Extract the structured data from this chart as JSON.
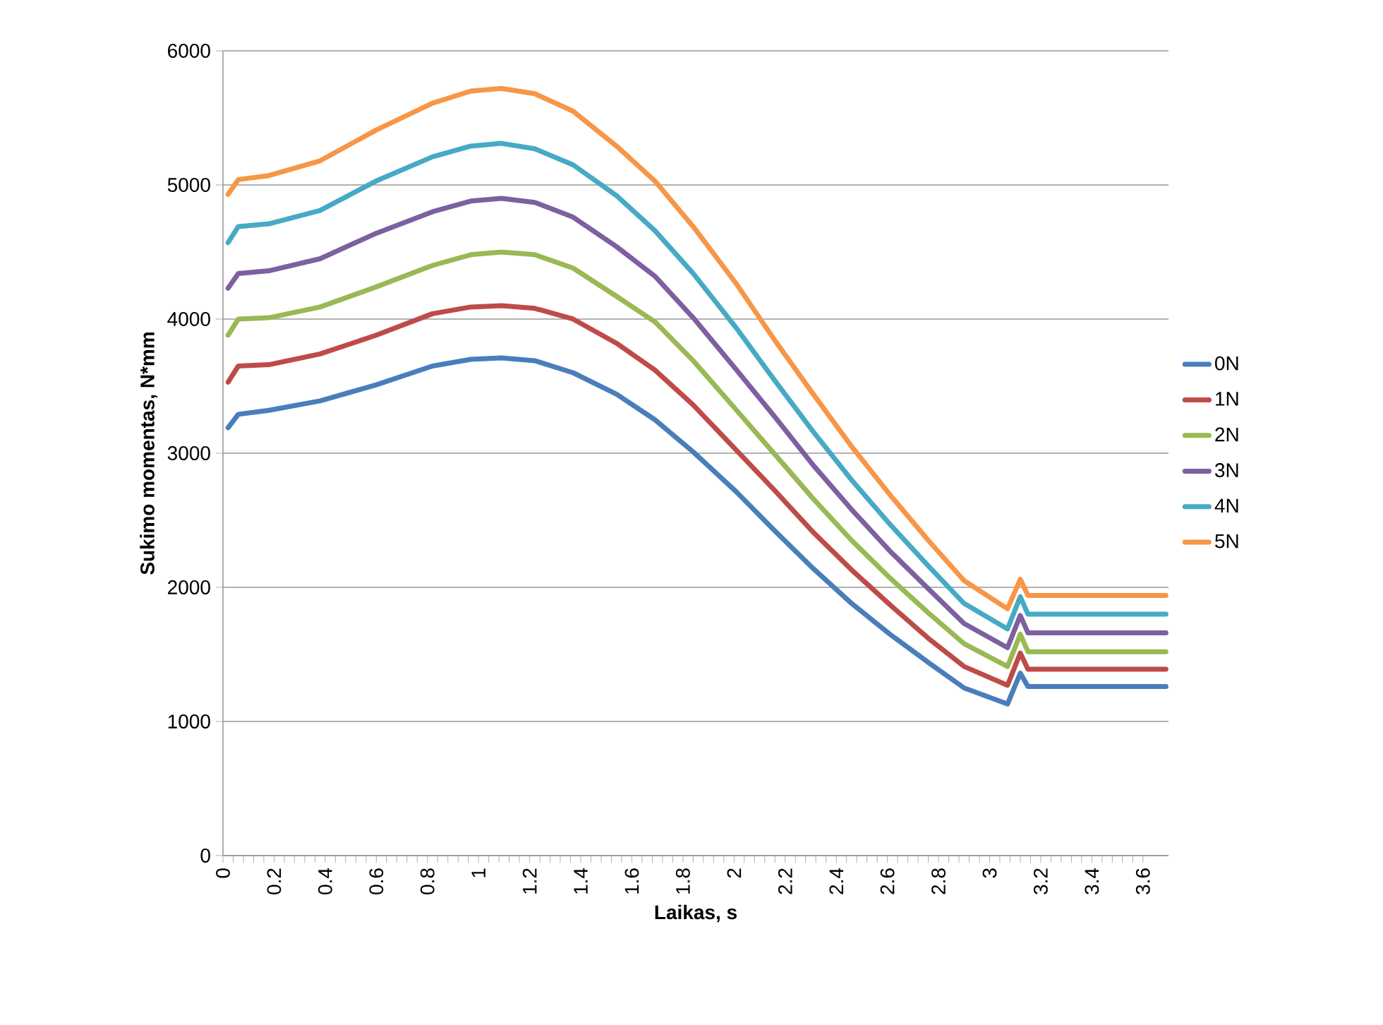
{
  "chart_data": {
    "type": "line",
    "xlabel": "Laikas, s",
    "ylabel": "Sukimo momentas, N*mm",
    "x": [
      0.02,
      0.06,
      0.18,
      0.38,
      0.6,
      0.82,
      0.97,
      1.09,
      1.22,
      1.37,
      1.54,
      1.69,
      1.84,
      2.01,
      2.16,
      2.31,
      2.46,
      2.61,
      2.76,
      2.9,
      3.07,
      3.12,
      3.15,
      3.4,
      3.69
    ],
    "series": [
      {
        "name": "0N",
        "color": "#4a7ebb",
        "values": [
          3190,
          3290,
          3320,
          3390,
          3510,
          3650,
          3700,
          3710,
          3690,
          3600,
          3440,
          3250,
          3010,
          2710,
          2420,
          2140,
          1880,
          1650,
          1440,
          1250,
          1130,
          1360,
          1260,
          1260,
          1260
        ]
      },
      {
        "name": "1N",
        "color": "#be4b48",
        "values": [
          3530,
          3650,
          3660,
          3740,
          3880,
          4040,
          4090,
          4100,
          4080,
          4000,
          3820,
          3620,
          3360,
          3020,
          2720,
          2410,
          2130,
          1870,
          1620,
          1410,
          1270,
          1510,
          1390,
          1390,
          1390
        ]
      },
      {
        "name": "2N",
        "color": "#98b954",
        "values": [
          3880,
          4000,
          4010,
          4090,
          4240,
          4400,
          4480,
          4500,
          4480,
          4380,
          4170,
          3980,
          3690,
          3320,
          2990,
          2660,
          2350,
          2070,
          1810,
          1580,
          1410,
          1650,
          1520,
          1520,
          1520
        ]
      },
      {
        "name": "3N",
        "color": "#7d60a0",
        "values": [
          4230,
          4340,
          4360,
          4450,
          4640,
          4800,
          4880,
          4900,
          4870,
          4760,
          4540,
          4320,
          4010,
          3620,
          3270,
          2910,
          2580,
          2270,
          1990,
          1730,
          1550,
          1790,
          1660,
          1660,
          1660
        ]
      },
      {
        "name": "4N",
        "color": "#46aac5",
        "values": [
          4570,
          4690,
          4710,
          4810,
          5030,
          5210,
          5290,
          5310,
          5270,
          5150,
          4920,
          4660,
          4340,
          3930,
          3540,
          3160,
          2800,
          2470,
          2160,
          1880,
          1690,
          1930,
          1800,
          1800,
          1800
        ]
      },
      {
        "name": "5N",
        "color": "#f79646",
        "values": [
          4930,
          5040,
          5070,
          5180,
          5410,
          5610,
          5700,
          5720,
          5680,
          5550,
          5290,
          5030,
          4690,
          4260,
          3840,
          3440,
          3050,
          2690,
          2350,
          2050,
          1840,
          2060,
          1940,
          1940,
          1940
        ]
      }
    ],
    "xlim": [
      0,
      3.7
    ],
    "xticks": [
      0,
      0.2,
      0.4,
      0.6,
      0.8,
      1,
      1.2,
      1.4,
      1.6,
      1.8,
      2,
      2.2,
      2.4,
      2.6,
      2.8,
      3,
      3.2,
      3.4,
      3.6
    ],
    "ylim": [
      0,
      6000
    ],
    "yticks": [
      0,
      1000,
      2000,
      3000,
      4000,
      5000,
      6000
    ],
    "grid": "y",
    "legend": "right",
    "marker": "none",
    "line_style": "solid"
  }
}
